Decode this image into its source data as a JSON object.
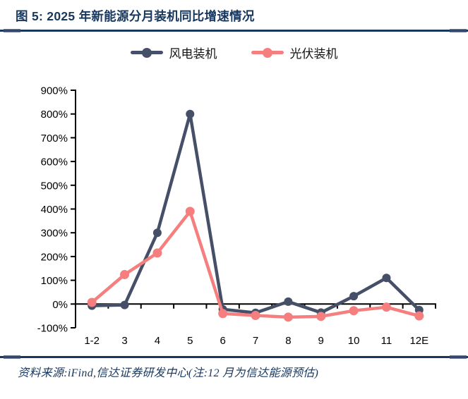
{
  "title": "图 5: 2025 年新能源分月装机同比增速情况",
  "footer": "资料来源:iFind,信达证券研发中心(注:12 月为信达能源预估)",
  "colors": {
    "accent_navy": "#17375E",
    "wind_series": "#455068",
    "solar_series": "#F57F7F",
    "axis": "#000000",
    "label_text": "#141414"
  },
  "chart_data": {
    "type": "line",
    "title": "2025 年新能源分月装机同比增速情况",
    "categories": [
      "1-2",
      "3",
      "4",
      "5",
      "6",
      "7",
      "8",
      "9",
      "10",
      "11",
      "12E"
    ],
    "series": [
      {
        "id": "wind",
        "name": "风电装机",
        "color": "#455068",
        "values": [
          -7,
          -4,
          300,
          800,
          -22,
          -37,
          10,
          -36,
          33,
          110,
          -25
        ]
      },
      {
        "id": "solar",
        "name": "光伏装机",
        "color": "#F57F7F",
        "values": [
          7,
          124,
          215,
          390,
          -40,
          -48,
          -55,
          -52,
          -28,
          -13,
          -50
        ]
      }
    ],
    "ylim": [
      -100,
      900
    ],
    "ytick_step": 100,
    "ytick_format": "percent",
    "ytick_labels": [
      "-100%",
      "0%",
      "100%",
      "200%",
      "300%",
      "400%",
      "500%",
      "600%",
      "700%",
      "800%",
      "900%"
    ],
    "grid": false,
    "legend_position": "top",
    "note": "12E 为预估值"
  }
}
